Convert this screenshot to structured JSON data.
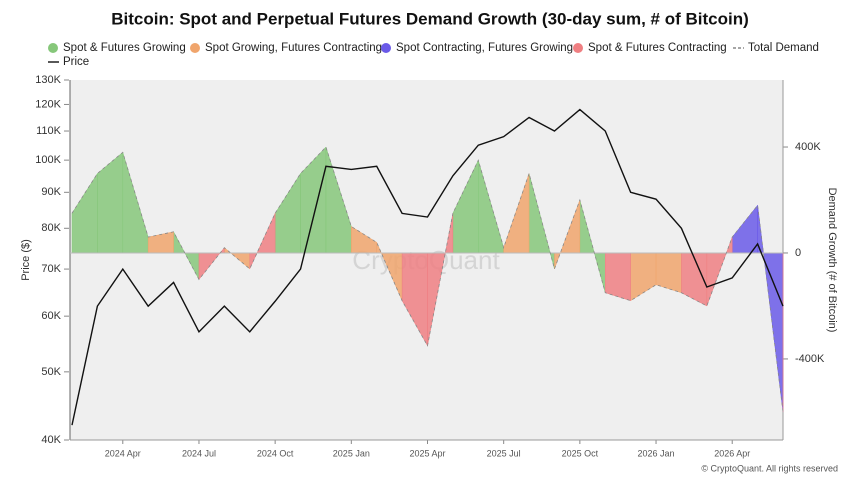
{
  "chart_data": {
    "type": "area",
    "title": "Bitcoin: Spot and Perpetual Futures Demand Growth (30-day sum, # of Bitcoin)",
    "x": [
      "2024-02",
      "2024-03",
      "2024-04",
      "2024-05",
      "2024-06",
      "2024-07",
      "2024-08",
      "2024-09",
      "2024-10",
      "2024-11",
      "2024-12",
      "2025-01",
      "2025-02",
      "2025-03",
      "2025-04",
      "2025-05",
      "2025-06",
      "2025-07",
      "2025-08",
      "2025-09",
      "2025-10",
      "2025-11",
      "2025-12",
      "2026-01",
      "2026-02",
      "2026-03",
      "2026-04",
      "2026-05",
      "2026-06"
    ],
    "xlim": [
      "2024-02",
      "2026-06"
    ],
    "xticks": [
      {
        "value": "2024-04",
        "label": "2024 Apr"
      },
      {
        "value": "2024-07",
        "label": "2024 Jul"
      },
      {
        "value": "2024-10",
        "label": "2024 Oct"
      },
      {
        "value": "2025-01",
        "label": "2025 Jan"
      },
      {
        "value": "2025-04",
        "label": "2025 Apr"
      },
      {
        "value": "2025-07",
        "label": "2025 Jul"
      },
      {
        "value": "2025-10",
        "label": "2025 Oct"
      },
      {
        "value": "2026-01",
        "label": "2026 Jan"
      },
      {
        "value": "2026-04",
        "label": "2026 Apr"
      }
    ],
    "ylabel": "Price ($)",
    "ylim": [
      40000,
      130000
    ],
    "log_scale": true,
    "yticks": [
      {
        "value": 40000,
        "label": "40K"
      },
      {
        "value": 50000,
        "label": "50K"
      },
      {
        "value": 60000,
        "label": "60K"
      },
      {
        "value": 70000,
        "label": "70K"
      },
      {
        "value": 80000,
        "label": "80K"
      },
      {
        "value": 90000,
        "label": "90K"
      },
      {
        "value": 100000,
        "label": "100K"
      },
      {
        "value": 110000,
        "label": "110K"
      },
      {
        "value": 120000,
        "label": "120K"
      },
      {
        "value": 130000,
        "label": "130K"
      }
    ],
    "y2label": "Demand Growth (# of Bitcoin)",
    "y2lim": [
      -706000,
      653000
    ],
    "y2ticks": [
      {
        "value": -400000,
        "label": "-400K"
      },
      0,
      {
        "value": 400000,
        "label": "400K"
      }
    ],
    "series": [
      {
        "name": "Spot & Futures Growing",
        "color": "#86c77a",
        "axis": "y2",
        "values": [
          150000,
          300000,
          380000,
          null,
          80000,
          null,
          null,
          null,
          150000,
          300000,
          400000,
          null,
          null,
          null,
          null,
          150000,
          350000,
          null,
          300000,
          null,
          200000,
          null,
          null,
          null,
          null,
          null,
          null,
          null,
          null
        ]
      },
      {
        "name": "Spot Growing, Futures Contracting",
        "color": "#f0a56c",
        "axis": "y2",
        "values": [
          null,
          null,
          null,
          60000,
          null,
          null,
          20000,
          null,
          null,
          null,
          null,
          100000,
          40000,
          null,
          null,
          null,
          null,
          20000,
          null,
          -60000,
          null,
          null,
          -180000,
          -120000,
          null,
          null,
          null,
          null,
          null
        ]
      },
      {
        "name": "Spot Contracting, Futures Growing",
        "color": "#6a5ae8",
        "axis": "y2",
        "values": [
          null,
          null,
          null,
          null,
          null,
          null,
          null,
          null,
          null,
          null,
          null,
          null,
          null,
          null,
          null,
          null,
          null,
          null,
          null,
          null,
          null,
          null,
          null,
          null,
          null,
          null,
          60000,
          180000,
          null
        ]
      },
      {
        "name": "Spot & Futures Contracting",
        "color": "#ef7f82",
        "axis": "y2",
        "values": [
          null,
          null,
          null,
          null,
          null,
          -100000,
          null,
          -60000,
          null,
          null,
          null,
          null,
          null,
          -180000,
          -350000,
          null,
          null,
          null,
          null,
          null,
          null,
          -150000,
          null,
          null,
          -150000,
          -200000,
          null,
          null,
          -600000
        ]
      },
      {
        "name": "Total Demand",
        "color": "#888888",
        "axis": "y2",
        "dashed": true
      },
      {
        "name": "Price",
        "color": "#111111",
        "axis": "y",
        "values": [
          42000,
          62000,
          70000,
          62000,
          67000,
          57000,
          62000,
          57000,
          63000,
          70000,
          98000,
          97000,
          98000,
          84000,
          83000,
          95000,
          105000,
          108000,
          115000,
          110000,
          118000,
          110000,
          90000,
          88000,
          80000,
          66000,
          68000,
          76000,
          62000
        ]
      }
    ],
    "watermark": "CryptoQuant",
    "footer": "© CryptoQuant. All rights reserved"
  }
}
